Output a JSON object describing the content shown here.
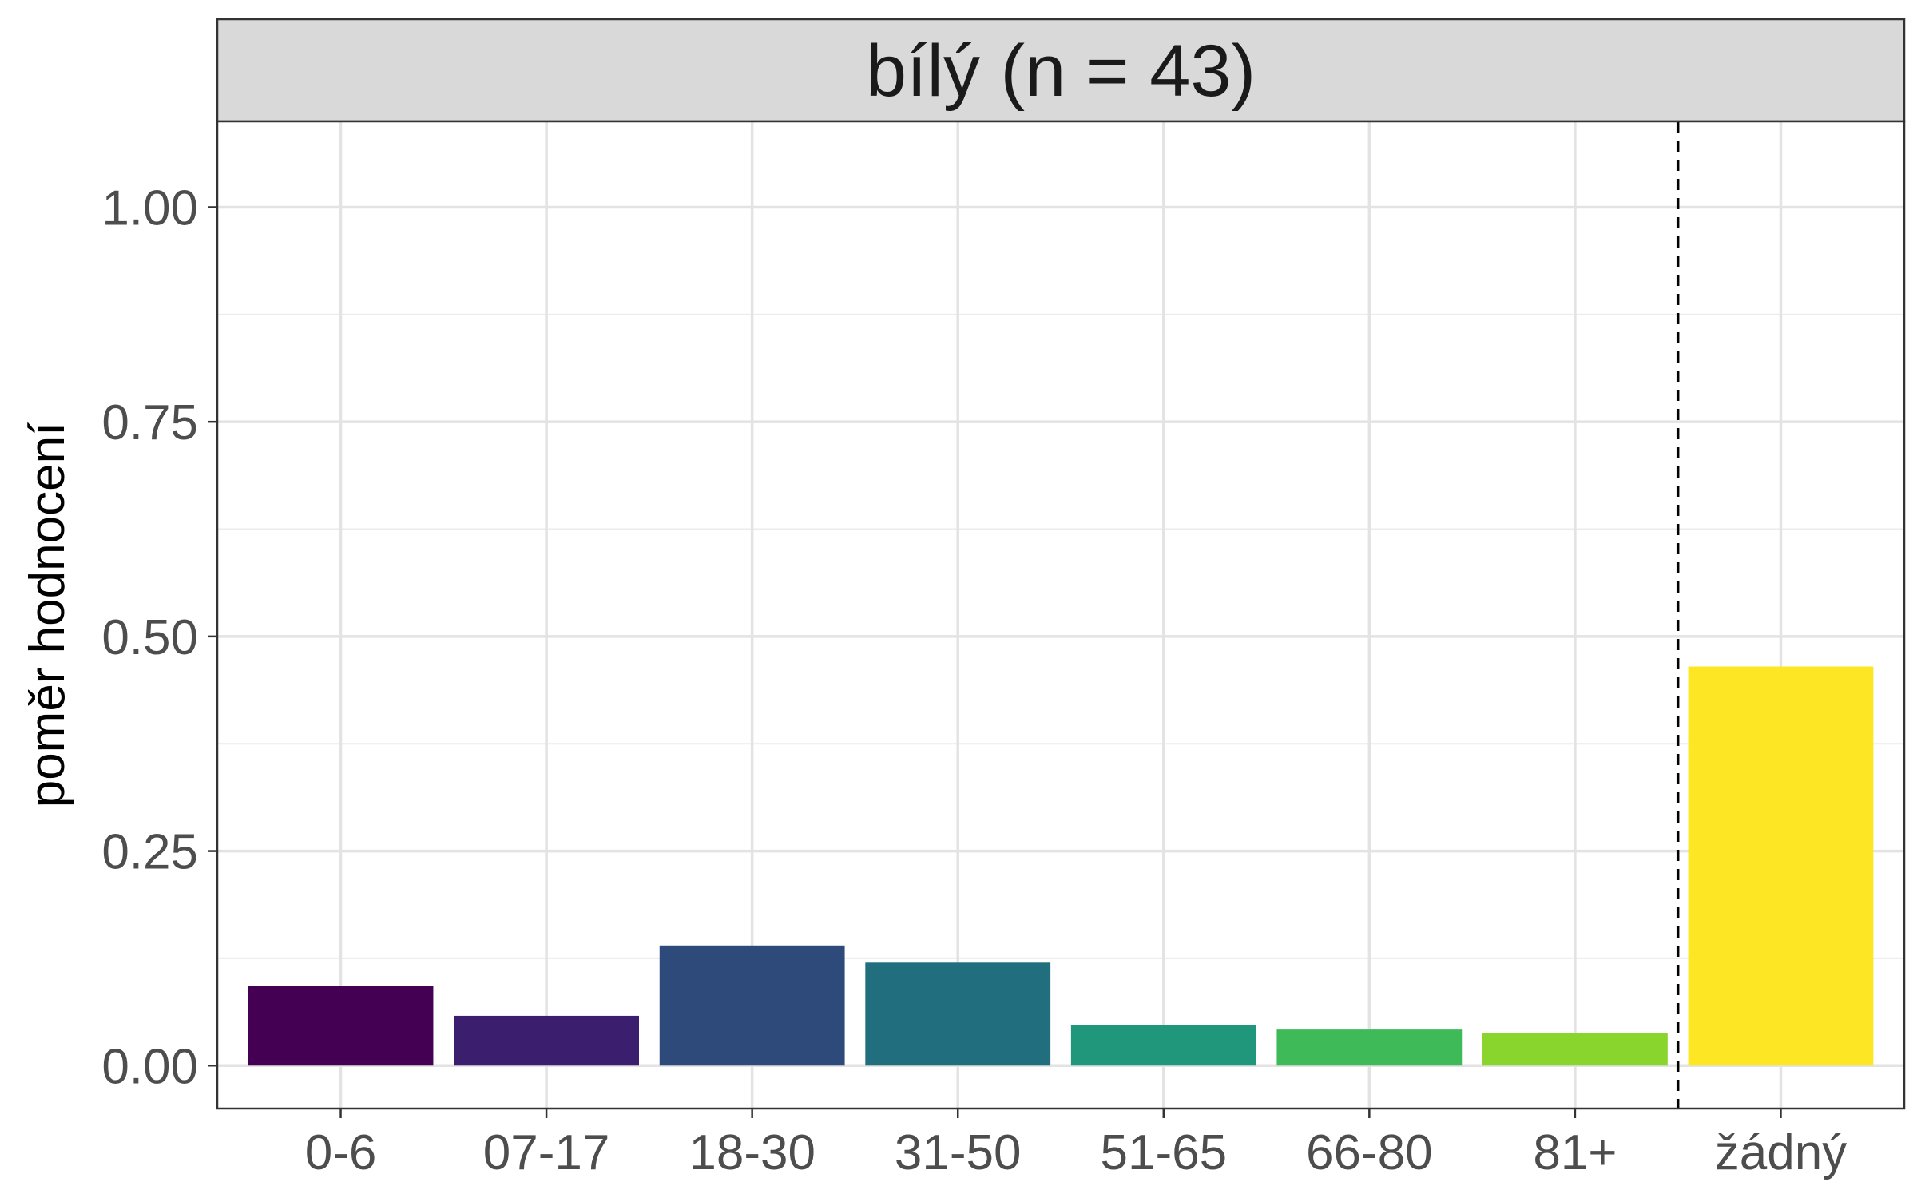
{
  "chart_data": {
    "type": "bar",
    "facet_title": "bílý (n = 43)",
    "categories": [
      "0-6",
      "07-17",
      "18-30",
      "31-50",
      "51-65",
      "66-80",
      "81+",
      "žádný"
    ],
    "values": [
      0.093,
      0.058,
      0.14,
      0.12,
      0.047,
      0.042,
      0.038,
      0.465
    ],
    "colors": [
      "#440154",
      "#3B1E6E",
      "#2D4A7A",
      "#216F7E",
      "#20967A",
      "#3FBA59",
      "#8AD42E",
      "#FDE725"
    ],
    "xlabel": "",
    "ylabel": "poměr hodnocení",
    "ylim": [
      -0.05,
      1.1
    ],
    "yticks": [
      0.0,
      0.25,
      0.5,
      0.75,
      1.0
    ],
    "ytick_labels": [
      "0.00",
      "0.25",
      "0.50",
      "0.75",
      "1.00"
    ],
    "reference_line": {
      "style": "dashed",
      "between": [
        "81+",
        "žádný"
      ]
    },
    "grid": true,
    "theme": "bw"
  }
}
